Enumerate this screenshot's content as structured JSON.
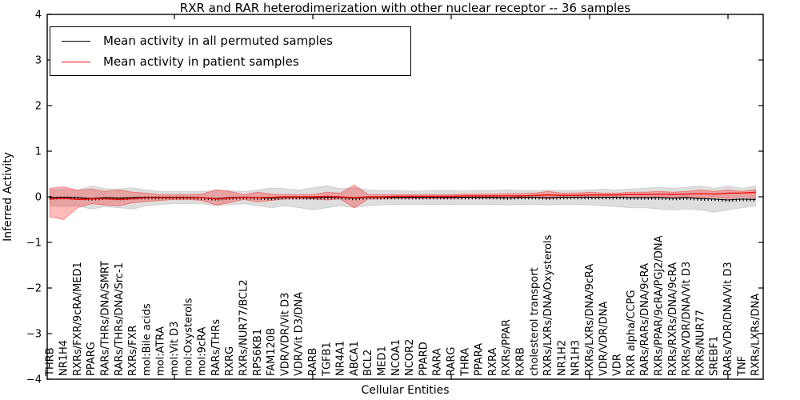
{
  "chart_data": {
    "type": "line",
    "title": "RXR and RAR heterodimerization with other nuclear receptor -- 36 samples",
    "xlabel": "Cellular Entities",
    "ylabel": "Inferred Activity",
    "ylim": [
      -4,
      4
    ],
    "ytick_values": [
      4,
      3,
      2,
      1,
      0,
      -1,
      -2,
      -3,
      -4
    ],
    "ytick_labels": [
      "4",
      "3",
      "2",
      "1",
      "0",
      "−1",
      "−2",
      "−3",
      "−4"
    ],
    "xtick_values": [
      10,
      20,
      30,
      40,
      50
    ],
    "grid": false,
    "legend_position": "upper left",
    "legend": {
      "items": [
        {
          "label": "Mean activity in all permuted samples",
          "color": "#000000"
        },
        {
          "label": "Mean activity in patient samples",
          "color": "#ff0000"
        }
      ]
    },
    "colors": {
      "permuted_line": "#000000",
      "patient_line": "#ff0000",
      "permuted_band": "#dedede",
      "patient_band": "#ff0000"
    },
    "categories": [
      "THRB",
      "NR1H4",
      "RXRs/FXR/9cRA/MED1",
      "PPARG",
      "RARs/THRs/DNA/SMRT",
      "RARs/THRs/DNA/Src-1",
      "RXRs/FXR",
      "mol:Bile acids",
      "mol:ATRA",
      "mol:Vit D3",
      "mol:Oxysterols",
      "mol:9cRA",
      "RARs/THRs",
      "RXRG",
      "RXRs/NUR77/BCL2",
      "RPS6KB1",
      "FAM120B",
      "VDR/VDR/Vit D3",
      "VDR/Vit D3/DNA",
      "RARB",
      "TGFB1",
      "NR4A1",
      "ABCA1",
      "BCL2",
      "MED1",
      "NCOA1",
      "NCOR2",
      "PPARD",
      "RARA",
      "RARG",
      "THRA",
      "PPARA",
      "RXRA",
      "RXRs/PPAR",
      "RXRB",
      "cholesterol transport",
      "RXRs/LXRs/DNA/Oxysterols",
      "NR1H2",
      "NR1H3",
      "RXRs/LXRs/DNA/9cRA",
      "VDR/VDR/DNA",
      "VDR",
      "RXR alpha/CCPG",
      "RARs/RARs/DNA/9cRA",
      "RXRs/PPAR/9cRA/PGJ2/DNA",
      "RXRs/RXRs/DNA/9cRA",
      "RXRs/VDR/DNA/Vit D3",
      "RXRs/NUR77",
      "SREBF1",
      "RARs/VDR/DNA/Vit D3",
      "TNF",
      "RXRs/LXRs/DNA"
    ],
    "series": [
      {
        "name": "Mean activity in all permuted samples",
        "values": [
          -0.02,
          -0.01,
          -0.02,
          -0.04,
          -0.02,
          -0.03,
          -0.02,
          -0.01,
          -0.01,
          -0.01,
          -0.01,
          -0.02,
          -0.04,
          -0.02,
          -0.01,
          -0.02,
          -0.03,
          -0.01,
          -0.01,
          -0.02,
          -0.01,
          -0.01,
          -0.03,
          -0.01,
          -0.01,
          -0.01,
          -0.01,
          -0.01,
          -0.01,
          -0.01,
          -0.01,
          -0.01,
          -0.01,
          -0.02,
          -0.01,
          -0.01,
          -0.02,
          -0.01,
          -0.01,
          -0.01,
          -0.01,
          -0.01,
          -0.02,
          -0.02,
          -0.02,
          -0.03,
          -0.02,
          -0.04,
          -0.05,
          -0.07,
          -0.05,
          -0.06
        ],
        "band_upper": [
          0.15,
          0.17,
          0.15,
          0.24,
          0.18,
          0.17,
          0.2,
          0.15,
          0.12,
          0.12,
          0.12,
          0.12,
          0.15,
          0.14,
          0.12,
          0.15,
          0.2,
          0.18,
          0.15,
          0.2,
          0.24,
          0.18,
          0.2,
          0.15,
          0.14,
          0.14,
          0.13,
          0.13,
          0.14,
          0.14,
          0.13,
          0.14,
          0.14,
          0.15,
          0.14,
          0.14,
          0.15,
          0.14,
          0.14,
          0.15,
          0.17,
          0.15,
          0.17,
          0.19,
          0.21,
          0.19,
          0.21,
          0.24,
          0.19,
          0.24,
          0.19,
          0.24
        ],
        "band_lower": [
          -0.2,
          -0.22,
          -0.2,
          -0.27,
          -0.22,
          -0.24,
          -0.27,
          -0.2,
          -0.17,
          -0.15,
          -0.15,
          -0.15,
          -0.2,
          -0.18,
          -0.15,
          -0.2,
          -0.24,
          -0.2,
          -0.24,
          -0.29,
          -0.24,
          -0.2,
          -0.24,
          -0.2,
          -0.18,
          -0.17,
          -0.17,
          -0.17,
          -0.17,
          -0.17,
          -0.17,
          -0.17,
          -0.17,
          -0.18,
          -0.17,
          -0.17,
          -0.18,
          -0.17,
          -0.17,
          -0.18,
          -0.2,
          -0.22,
          -0.24,
          -0.24,
          -0.27,
          -0.29,
          -0.27,
          -0.29,
          -0.34,
          -0.29,
          -0.24,
          -0.2
        ]
      },
      {
        "name": "Mean activity in patient samples",
        "values": [
          -0.05,
          -0.03,
          -0.06,
          -0.05,
          -0.04,
          -0.06,
          -0.04,
          -0.02,
          -0.02,
          -0.02,
          -0.02,
          -0.02,
          -0.05,
          -0.03,
          -0.01,
          -0.02,
          -0.01,
          0,
          0,
          0,
          0.01,
          0,
          -0.02,
          0,
          0,
          0.01,
          0.01,
          0.01,
          0.01,
          0.01,
          0.02,
          0.02,
          0.02,
          0.02,
          0.02,
          0.03,
          0.04,
          0.03,
          0.03,
          0.04,
          0.04,
          0.04,
          0.05,
          0.05,
          0.06,
          0.05,
          0.06,
          0.07,
          0.06,
          0.08,
          0.08,
          0.1
        ],
        "band_upper": [
          0.19,
          0.22,
          0.14,
          0.17,
          0.12,
          0.15,
          0.1,
          0.08,
          0.05,
          0.05,
          0.05,
          0.06,
          0.15,
          0.12,
          0.05,
          0.1,
          0.06,
          0.05,
          0.05,
          0.05,
          0.1,
          0.08,
          0.26,
          0.05,
          0.05,
          0.05,
          0.05,
          0.05,
          0.05,
          0.05,
          0.06,
          0.06,
          0.06,
          0.07,
          0.07,
          0.08,
          0.12,
          0.08,
          0.08,
          0.1,
          0.08,
          0.08,
          0.1,
          0.1,
          0.12,
          0.1,
          0.12,
          0.15,
          0.12,
          0.15,
          0.12,
          0.16
        ],
        "band_lower": [
          -0.44,
          -0.5,
          -0.24,
          -0.15,
          -0.18,
          -0.2,
          -0.13,
          -0.1,
          -0.08,
          -0.06,
          -0.06,
          -0.08,
          -0.18,
          -0.13,
          -0.06,
          -0.11,
          -0.08,
          -0.05,
          -0.05,
          -0.05,
          -0.07,
          -0.05,
          -0.24,
          -0.05,
          -0.05,
          -0.04,
          -0.04,
          -0.04,
          -0.04,
          -0.04,
          -0.03,
          -0.03,
          -0.03,
          -0.03,
          -0.03,
          -0.02,
          -0.04,
          -0.02,
          -0.02,
          -0.02,
          -0.02,
          -0.02,
          -0.01,
          -0.01,
          0.0,
          -0.01,
          0.0,
          -0.02,
          0.0,
          -0.04,
          0.0,
          -0.03
        ]
      }
    ]
  }
}
